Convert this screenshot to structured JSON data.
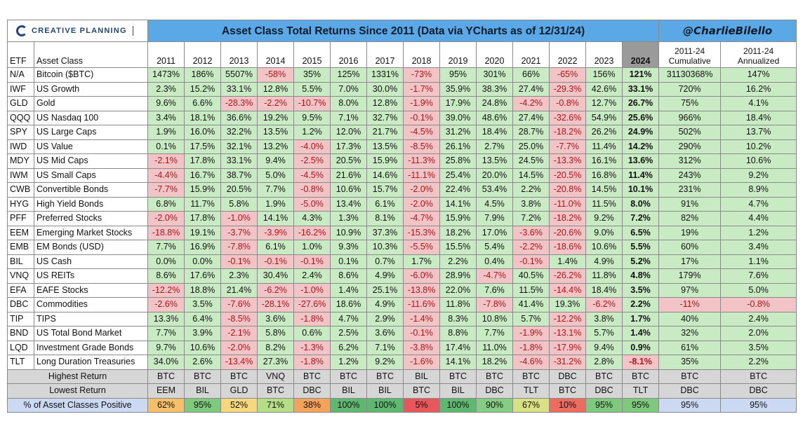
{
  "brand": {
    "name": "CREATIVE PLANNING",
    "icon": "creative-planning-logo"
  },
  "title": "Asset Class Total Returns Since 2011 (Data via YCharts as of 12/31/24)",
  "handle": "@CharlieBilello",
  "headers": {
    "etf": "ETF",
    "asset_class": "Asset Class",
    "years": [
      "2011",
      "2012",
      "2013",
      "2014",
      "2015",
      "2016",
      "2017",
      "2018",
      "2019",
      "2020",
      "2021",
      "2022",
      "2023",
      "2024"
    ],
    "cum_top": "2011-24",
    "cum_bottom": "Cumulative",
    "ann_top": "2011-24",
    "ann_bottom": "Annualized"
  },
  "rows": [
    {
      "etf": "N/A",
      "name": "Bitcoin ($BTC)",
      "values": [
        "1473%",
        "186%",
        "5507%",
        "-58%",
        "35%",
        "125%",
        "1331%",
        "-73%",
        "95%",
        "301%",
        "66%",
        "-65%",
        "156%",
        "121%"
      ],
      "cum": "31130368%",
      "ann": "147%"
    },
    {
      "etf": "IWF",
      "name": "US Growth",
      "values": [
        "2.3%",
        "15.2%",
        "33.1%",
        "12.8%",
        "5.5%",
        "7.0%",
        "30.0%",
        "-1.7%",
        "35.9%",
        "38.3%",
        "27.4%",
        "-29.3%",
        "42.6%",
        "33.1%"
      ],
      "cum": "720%",
      "ann": "16.2%"
    },
    {
      "etf": "GLD",
      "name": "Gold",
      "values": [
        "9.6%",
        "6.6%",
        "-28.3%",
        "-2.2%",
        "-10.7%",
        "8.0%",
        "12.8%",
        "-1.9%",
        "17.9%",
        "24.8%",
        "-4.2%",
        "-0.8%",
        "12.7%",
        "26.7%"
      ],
      "cum": "75%",
      "ann": "4.1%"
    },
    {
      "etf": "QQQ",
      "name": "US Nasdaq 100",
      "values": [
        "3.4%",
        "18.1%",
        "36.6%",
        "19.2%",
        "9.5%",
        "7.1%",
        "32.7%",
        "-0.1%",
        "39.0%",
        "48.6%",
        "27.4%",
        "-32.6%",
        "54.9%",
        "25.6%"
      ],
      "cum": "966%",
      "ann": "18.4%"
    },
    {
      "etf": "SPY",
      "name": "US Large Caps",
      "values": [
        "1.9%",
        "16.0%",
        "32.2%",
        "13.5%",
        "1.2%",
        "12.0%",
        "21.7%",
        "-4.5%",
        "31.2%",
        "18.4%",
        "28.7%",
        "-18.2%",
        "26.2%",
        "24.9%"
      ],
      "cum": "502%",
      "ann": "13.7%"
    },
    {
      "etf": "IWD",
      "name": "US Value",
      "values": [
        "0.1%",
        "17.5%",
        "32.1%",
        "13.2%",
        "-4.0%",
        "17.3%",
        "13.5%",
        "-8.5%",
        "26.1%",
        "2.7%",
        "25.0%",
        "-7.7%",
        "11.4%",
        "14.2%"
      ],
      "cum": "290%",
      "ann": "10.2%"
    },
    {
      "etf": "MDY",
      "name": "US Mid Caps",
      "values": [
        "-2.1%",
        "17.8%",
        "33.1%",
        "9.4%",
        "-2.5%",
        "20.5%",
        "15.9%",
        "-11.3%",
        "25.8%",
        "13.5%",
        "24.5%",
        "-13.3%",
        "16.1%",
        "13.6%"
      ],
      "cum": "312%",
      "ann": "10.6%"
    },
    {
      "etf": "IWM",
      "name": "US Small Caps",
      "values": [
        "-4.4%",
        "16.7%",
        "38.7%",
        "5.0%",
        "-4.5%",
        "21.6%",
        "14.6%",
        "-11.1%",
        "25.4%",
        "20.0%",
        "14.5%",
        "-20.5%",
        "16.8%",
        "11.4%"
      ],
      "cum": "243%",
      "ann": "9.2%"
    },
    {
      "etf": "CWB",
      "name": "Convertible Bonds",
      "values": [
        "-7.7%",
        "15.9%",
        "20.5%",
        "7.7%",
        "-0.8%",
        "10.6%",
        "15.7%",
        "-2.0%",
        "22.4%",
        "53.4%",
        "2.2%",
        "-20.8%",
        "14.5%",
        "10.1%"
      ],
      "cum": "231%",
      "ann": "8.9%"
    },
    {
      "etf": "HYG",
      "name": "High Yield Bonds",
      "values": [
        "6.8%",
        "11.7%",
        "5.8%",
        "1.9%",
        "-5.0%",
        "13.4%",
        "6.1%",
        "-2.0%",
        "14.1%",
        "4.5%",
        "3.8%",
        "-11.0%",
        "11.5%",
        "8.0%"
      ],
      "cum": "91%",
      "ann": "4.7%"
    },
    {
      "etf": "PFF",
      "name": "Preferred Stocks",
      "values": [
        "-2.0%",
        "17.8%",
        "-1.0%",
        "14.1%",
        "4.3%",
        "1.3%",
        "8.1%",
        "-4.7%",
        "15.9%",
        "7.9%",
        "7.2%",
        "-18.2%",
        "9.2%",
        "7.2%"
      ],
      "cum": "82%",
      "ann": "4.4%"
    },
    {
      "etf": "EEM",
      "name": "Emerging Market Stocks",
      "values": [
        "-18.8%",
        "19.1%",
        "-3.7%",
        "-3.9%",
        "-16.2%",
        "10.9%",
        "37.3%",
        "-15.3%",
        "18.2%",
        "17.0%",
        "-3.6%",
        "-20.6%",
        "9.0%",
        "6.5%"
      ],
      "cum": "19%",
      "ann": "1.2%"
    },
    {
      "etf": "EMB",
      "name": "EM Bonds (USD)",
      "values": [
        "7.7%",
        "16.9%",
        "-7.8%",
        "6.1%",
        "1.0%",
        "9.3%",
        "10.3%",
        "-5.5%",
        "15.5%",
        "5.4%",
        "-2.2%",
        "-18.6%",
        "10.6%",
        "5.5%"
      ],
      "cum": "60%",
      "ann": "3.4%"
    },
    {
      "etf": "BIL",
      "name": "US Cash",
      "values": [
        "0.0%",
        "0.0%",
        "-0.1%",
        "-0.1%",
        "-0.1%",
        "0.1%",
        "0.7%",
        "1.7%",
        "2.2%",
        "0.4%",
        "-0.1%",
        "1.4%",
        "4.9%",
        "5.2%"
      ],
      "cum": "17%",
      "ann": "1.1%"
    },
    {
      "etf": "VNQ",
      "name": "US REITs",
      "values": [
        "8.6%",
        "17.6%",
        "2.3%",
        "30.4%",
        "2.4%",
        "8.6%",
        "4.9%",
        "-6.0%",
        "28.9%",
        "-4.7%",
        "40.5%",
        "-26.2%",
        "11.8%",
        "4.8%"
      ],
      "cum": "179%",
      "ann": "7.6%"
    },
    {
      "etf": "EFA",
      "name": "EAFE Stocks",
      "values": [
        "-12.2%",
        "18.8%",
        "21.4%",
        "-6.2%",
        "-1.0%",
        "1.4%",
        "25.1%",
        "-13.8%",
        "22.0%",
        "7.6%",
        "11.5%",
        "-14.4%",
        "18.4%",
        "3.5%"
      ],
      "cum": "97%",
      "ann": "5.0%"
    },
    {
      "etf": "DBC",
      "name": "Commodities",
      "values": [
        "-2.6%",
        "3.5%",
        "-7.6%",
        "-28.1%",
        "-27.6%",
        "18.6%",
        "4.9%",
        "-11.6%",
        "11.8%",
        "-7.8%",
        "41.4%",
        "19.3%",
        "-6.2%",
        "2.2%"
      ],
      "cum": "-11%",
      "ann": "-0.8%"
    },
    {
      "etf": "TIP",
      "name": "TIPS",
      "values": [
        "13.3%",
        "6.4%",
        "-8.5%",
        "3.6%",
        "-1.8%",
        "4.7%",
        "2.9%",
        "-1.4%",
        "8.3%",
        "10.8%",
        "5.7%",
        "-12.2%",
        "3.8%",
        "1.7%"
      ],
      "cum": "40%",
      "ann": "2.4%"
    },
    {
      "etf": "BND",
      "name": "US Total Bond Market",
      "values": [
        "7.7%",
        "3.9%",
        "-2.1%",
        "5.8%",
        "0.6%",
        "2.5%",
        "3.6%",
        "-0.1%",
        "8.8%",
        "7.7%",
        "-1.9%",
        "-13.1%",
        "5.7%",
        "1.4%"
      ],
      "cum": "32%",
      "ann": "2.0%"
    },
    {
      "etf": "LQD",
      "name": "Investment Grade Bonds",
      "values": [
        "9.7%",
        "10.6%",
        "-2.0%",
        "8.2%",
        "-1.3%",
        "6.2%",
        "7.1%",
        "-3.8%",
        "17.4%",
        "11.0%",
        "-1.8%",
        "-17.9%",
        "9.4%",
        "0.9%"
      ],
      "cum": "61%",
      "ann": "3.5%"
    },
    {
      "etf": "TLT",
      "name": "Long Duration Treasuries",
      "values": [
        "34.0%",
        "2.6%",
        "-13.4%",
        "27.3%",
        "-1.8%",
        "1.2%",
        "9.2%",
        "-1.6%",
        "14.1%",
        "18.2%",
        "-4.6%",
        "-31.2%",
        "2.8%",
        "-8.1%"
      ],
      "cum": "35%",
      "ann": "2.2%"
    }
  ],
  "highest": {
    "label": "Highest Return",
    "values": [
      "BTC",
      "BTC",
      "BTC",
      "VNQ",
      "BTC",
      "BTC",
      "BTC",
      "BIL",
      "BTC",
      "BTC",
      "BTC",
      "DBC",
      "BTC",
      "BTC"
    ],
    "cum": "BTC",
    "ann": "BTC"
  },
  "lowest": {
    "label": "Lowest Return",
    "values": [
      "EEM",
      "BIL",
      "GLD",
      "BTC",
      "DBC",
      "BIL",
      "BIL",
      "BTC",
      "BIL",
      "DBC",
      "TLT",
      "BTC",
      "DBC",
      "TLT"
    ],
    "cum": "DBC",
    "ann": "DBC"
  },
  "positive": {
    "label": "% of Asset Classes Positive",
    "values": [
      "62%",
      "95%",
      "52%",
      "71%",
      "38%",
      "100%",
      "100%",
      "5%",
      "100%",
      "90%",
      "67%",
      "10%",
      "95%",
      "95%"
    ],
    "colors": [
      "#f6c06a",
      "#7fc97f",
      "#f6d77e",
      "#b5dd86",
      "#f4a25c",
      "#5fb870",
      "#5fb870",
      "#e8585a",
      "#5fb870",
      "#86cd84",
      "#d9e184",
      "#ec6c60",
      "#7fc97f",
      "#7fc97f"
    ],
    "cum": "95%",
    "ann": "95%",
    "summary_color": "#ccd9f2"
  },
  "colors": {
    "positive_fill": "#c9ebc3",
    "negative_fill": "#f2c4c6",
    "negative_text": "#b0141a",
    "header_blue": "#5aa8e6",
    "highlight_col": "#9a9a9a"
  }
}
